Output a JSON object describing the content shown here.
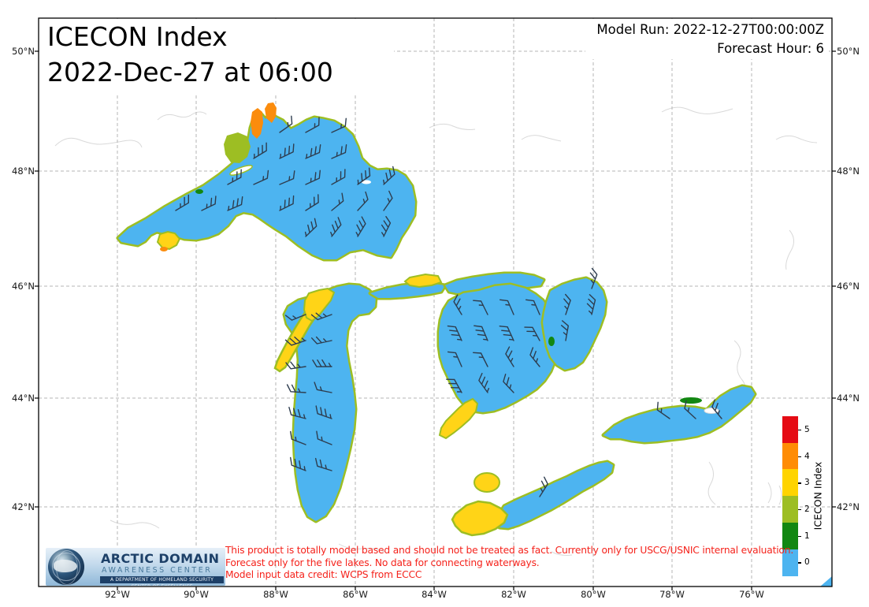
{
  "header": {
    "title_line1": "ICECON Index",
    "title_line2": "2022-Dec-27 at 06:00",
    "model_run": "Model Run: 2022-12-27T00:00:00Z",
    "forecast_hour": "Forecast Hour: 6"
  },
  "axes": {
    "lat_labels": [
      "50°N",
      "48°N",
      "46°N",
      "44°N",
      "42°N"
    ],
    "lon_labels": [
      "92°W",
      "90°W",
      "88°W",
      "86°W",
      "84°W",
      "82°W",
      "80°W",
      "78°W",
      "76°W"
    ]
  },
  "colorbar": {
    "title": "ICECON Index",
    "tick_labels_top_to_bottom": [
      "5",
      "4",
      "3",
      "2",
      "1",
      "0"
    ],
    "colors_top_to_bottom": [
      "#e50b14",
      "#ff8c05",
      "#ffd400",
      "#9dbe23",
      "#128712",
      "#4db4f0"
    ]
  },
  "disclaimer": {
    "color": "#f5231c",
    "lines": [
      "This product is totally model based and should not be treated as fact. Currently only for USCG/USNIC internal evaluation.",
      "Forecast only for the five lakes. No data for connecting waterways.",
      "Model input data credit: WCPS from ECCC"
    ]
  },
  "logo": {
    "line1": "ARCTIC DOMAIN",
    "line2": "AWARENESS CENTER",
    "line3": "A DEPARTMENT OF HOMELAND SECURITY CENTER OF EXCELLENCE"
  },
  "map": {
    "colors": {
      "icecon_0_water": "#4db4f0",
      "icecon_1_green": "#128712",
      "icecon_2_olive": "#9dbe23",
      "icecon_3_yellow": "#ffd417",
      "icecon_4_orange": "#fb8c0d",
      "icecon_5_red": "#e50b14",
      "gridline": "#b5b5b5",
      "coastline": "#d9d9d9",
      "border": "#000000"
    },
    "wind_barbs": {
      "color": "#2e3d4f",
      "wind_from": {
        "superior": "NE",
        "michigan": "W",
        "mackinac": "W",
        "northchannel": "N",
        "huron": "NW",
        "georgian": "N",
        "erie": "NE",
        "ontario": "NW"
      }
    }
  }
}
